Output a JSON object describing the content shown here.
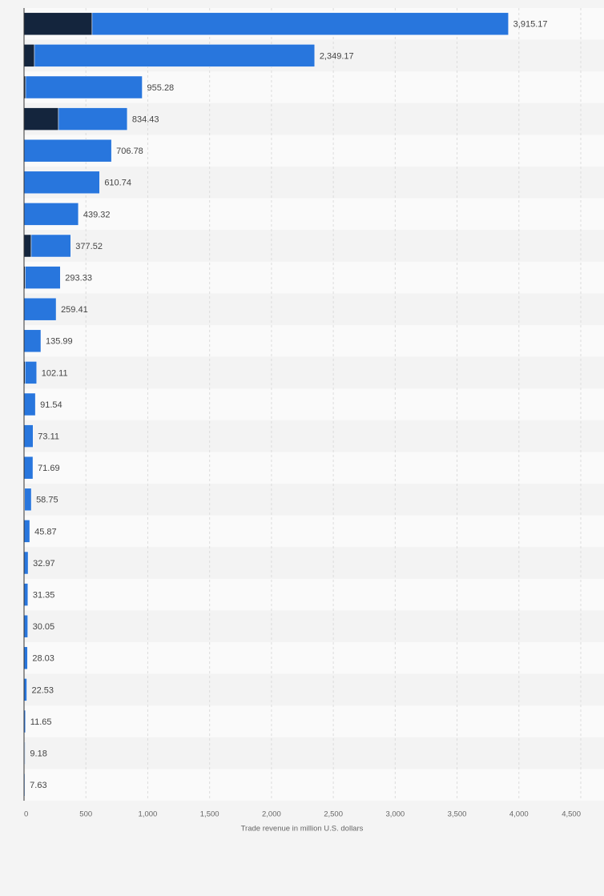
{
  "chart_data": {
    "type": "stacked-bar-horizontal",
    "x_label": "Trade revenue in million U.S. dollars",
    "categories": [
      null,
      null,
      null,
      null,
      null,
      null,
      null,
      null,
      null,
      null,
      null,
      null,
      null,
      null,
      null,
      null,
      null,
      null,
      null,
      null,
      null,
      null,
      null,
      null,
      null
    ],
    "series": [
      {
        "color": "#14253d",
        "values": [
          550,
          84,
          13,
          278,
          0,
          0,
          0,
          58,
          10,
          0,
          0,
          8,
          0,
          0,
          0,
          5,
          0,
          0,
          0,
          0,
          0,
          0,
          0,
          4,
          3
        ]
      },
      {
        "color": "#2876dd",
        "values": [
          3365.17,
          2265.17,
          942.28,
          556.43,
          706.78,
          610.74,
          439.32,
          319.52,
          283.33,
          259.41,
          135.99,
          94.11,
          91.54,
          73.11,
          71.69,
          53.75,
          45.87,
          32.97,
          31.35,
          30.05,
          28.03,
          22.53,
          11.65,
          5.18,
          4.63
        ]
      }
    ],
    "totals": [
      3915.17,
      2349.17,
      955.28,
      834.43,
      706.78,
      610.74,
      439.32,
      377.52,
      293.33,
      259.41,
      135.99,
      102.11,
      91.54,
      73.11,
      71.69,
      58.75,
      45.87,
      32.97,
      31.35,
      30.05,
      28.03,
      22.53,
      11.65,
      9.18,
      7.63
    ],
    "total_labels": [
      "3,915.17",
      "2,349.17",
      "955.28",
      "834.43",
      "706.78",
      "610.74",
      "439.32",
      "377.52",
      "293.33",
      "259.41",
      "135.99",
      "102.11",
      "91.54",
      "73.11",
      "71.69",
      "58.75",
      "45.87",
      "32.97",
      "31.35",
      "30.05",
      "28.03",
      "22.53",
      "11.65",
      "9.18",
      "7.63"
    ],
    "xlim": [
      0,
      4500
    ],
    "xticks": [
      0,
      500,
      {
        "value": 1000,
        "label": "1,000"
      },
      {
        "value": 1500,
        "label": "1,500"
      },
      {
        "value": 2000,
        "label": "2,000"
      },
      {
        "value": 2500,
        "label": "2,500"
      },
      {
        "value": 3000,
        "label": "3,000"
      },
      {
        "value": 3500,
        "label": "3,500"
      },
      {
        "value": 4000,
        "label": "4,000"
      },
      {
        "value": 4500,
        "label": "4,500"
      }
    ],
    "grid": true
  }
}
